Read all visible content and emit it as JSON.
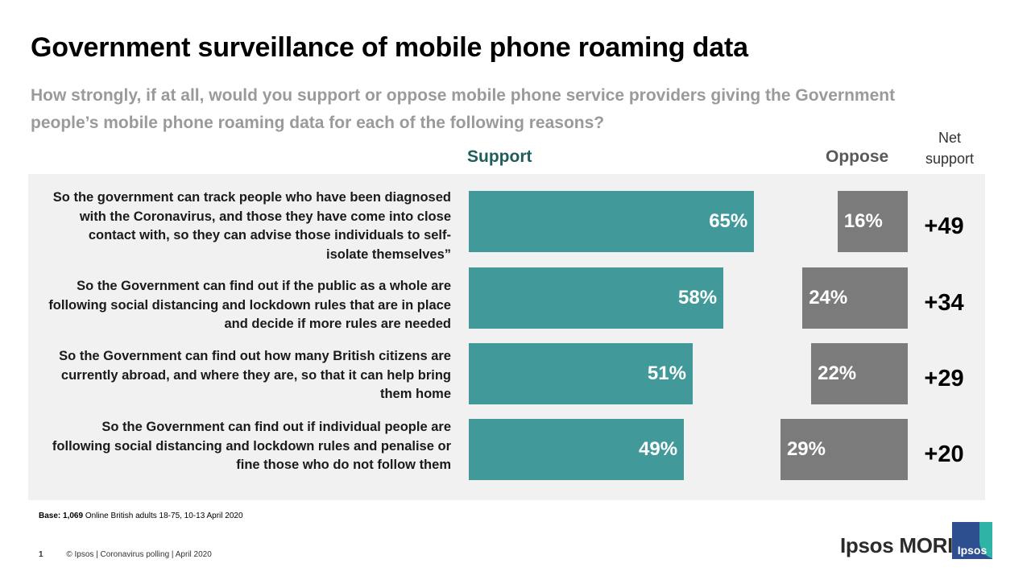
{
  "title": "Government surveillance of mobile phone roaming data",
  "subtitle": "How strongly, if at all, would you support or oppose mobile phone service providers giving the Government people’s mobile phone roaming data for each of the following reasons?",
  "headers": {
    "support": "Support",
    "oppose": "Oppose",
    "net_line1": "Net",
    "net_line2": "support"
  },
  "colors": {
    "support": "#41999a",
    "oppose": "#7b7b7b",
    "panel": "#f1f1f1",
    "support_header": "#1f5d5a"
  },
  "chart_data": {
    "type": "bar",
    "orientation": "horizontal",
    "categories": [
      "So the government can track people who have been diagnosed with the Coronavirus, and those they have come into close contact with, so they can advise those individuals to self-isolate themselves”",
      "So the Government can find out if the public as a whole are following social distancing and lockdown rules that are in place and decide if more rules are needed",
      "So the Government can find out how many British citizens are currently abroad, and where they are, so that it can help bring them home",
      "So the Government can find out if individual people are following social distancing and lockdown rules and penalise or fine those who do not follow them"
    ],
    "series": [
      {
        "name": "Support",
        "values": [
          65,
          58,
          51,
          49
        ],
        "labels": [
          "65%",
          "58%",
          "51%",
          "49%"
        ]
      },
      {
        "name": "Oppose",
        "values": [
          16,
          24,
          22,
          29
        ],
        "labels": [
          "16%",
          "24%",
          "22%",
          "29%"
        ]
      }
    ],
    "net_support": [
      "+49",
      "+34",
      "+29",
      "+20"
    ],
    "unit": "%"
  },
  "base": {
    "label": "Base:",
    "count": "1,069",
    "text": " Online British adults 18-75, 10-13 April 2020"
  },
  "footer": {
    "page": "1",
    "text": "© Ipsos | Coronavirus polling | April 2020"
  },
  "brand": {
    "name": "Ipsos MORI",
    "logo_text": "Ipsos"
  }
}
